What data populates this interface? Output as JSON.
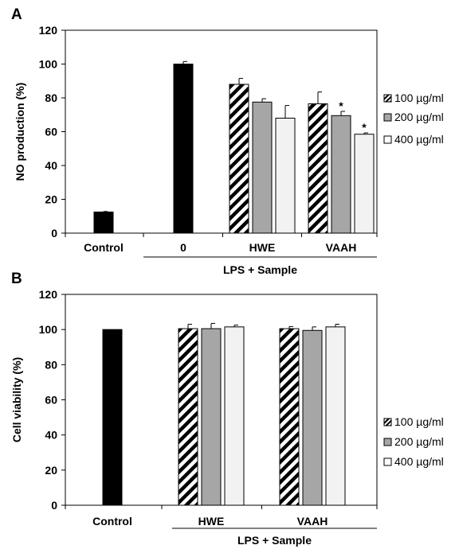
{
  "chart_data": [
    {
      "type": "bar",
      "panel": "A",
      "ylabel": "NO production (%)",
      "ylim": [
        0,
        120
      ],
      "yticks": [
        0,
        20,
        40,
        60,
        80,
        100,
        120
      ],
      "groups": [
        {
          "label": "Control",
          "bars": [
            {
              "series": "control",
              "value": 12.5,
              "error": 0.3
            }
          ]
        },
        {
          "label": "0",
          "bars": [
            {
              "series": "control",
              "value": 100,
              "error": 1.5
            }
          ]
        },
        {
          "label": "HWE",
          "bars": [
            {
              "series": "100 µg/ml",
              "value": 88,
              "error": 3.5
            },
            {
              "series": "200 µg/ml",
              "value": 77.5,
              "error": 2.0
            },
            {
              "series": "400 µg/ml",
              "value": 68,
              "error": 7.5
            }
          ]
        },
        {
          "label": "VAAH",
          "bars": [
            {
              "series": "100 µg/ml",
              "value": 76.5,
              "error": 7.0
            },
            {
              "series": "200 µg/ml",
              "value": 69.5,
              "error": 2.5,
              "annotation": "*"
            },
            {
              "series": "400 µg/ml",
              "value": 58.5,
              "error": 0.8,
              "annotation": "*"
            }
          ]
        }
      ],
      "group_label": "LPS + Sample",
      "legend": [
        "100 µg/ml",
        "200 µg/ml",
        "400 µg/ml"
      ],
      "legend_position": "right"
    },
    {
      "type": "bar",
      "panel": "B",
      "ylabel": "Cell viability (%)",
      "ylim": [
        0,
        120
      ],
      "yticks": [
        0,
        20,
        40,
        60,
        80,
        100,
        120
      ],
      "groups": [
        {
          "label": "Control",
          "bars": [
            {
              "series": "control",
              "value": 100,
              "error": 0
            }
          ]
        },
        {
          "label": "HWE",
          "bars": [
            {
              "series": "100 µg/ml",
              "value": 100.5,
              "error": 2.5
            },
            {
              "series": "200 µg/ml",
              "value": 100.5,
              "error": 3.0
            },
            {
              "series": "400 µg/ml",
              "value": 101.5,
              "error": 1.0
            }
          ]
        },
        {
          "label": "VAAH",
          "bars": [
            {
              "series": "100 µg/ml",
              "value": 100.5,
              "error": 1.2
            },
            {
              "series": "200 µg/ml",
              "value": 99.5,
              "error": 2.0
            },
            {
              "series": "400 µg/ml",
              "value": 101.5,
              "error": 1.5
            }
          ]
        }
      ],
      "group_label": "LPS + Sample",
      "legend": [
        "100 µg/ml",
        "200 µg/ml",
        "400 µg/ml"
      ],
      "legend_position": "right"
    }
  ],
  "colors": {
    "control": "#000000",
    "200 µg/ml": "#a6a6a6",
    "400 µg/ml": "#f2f2f2",
    "stroke": "#000000"
  }
}
